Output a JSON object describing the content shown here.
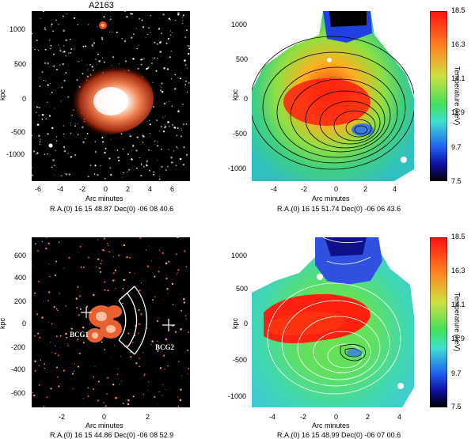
{
  "figure": {
    "panels": [
      {
        "id": "tl",
        "title": "A2163",
        "ylabel": "kpc",
        "xlabel": "Arc minutes",
        "coords": "R.A.(0) 16 15 48.87   Dec(0) -06 08 40.6",
        "xticks": [
          "-6",
          "-4",
          "-2",
          "0",
          "2",
          "4",
          "6"
        ],
        "yticks": [
          "1000",
          "500",
          "0",
          "-500",
          "-1000"
        ]
      },
      {
        "id": "tr",
        "title": "",
        "ylabel": "kpc",
        "xlabel": "Arc minutes",
        "coords": "R.A.(0) 16 15 51.74   Dec(0) -06 06 43.6",
        "xticks": [
          "-4",
          "-2",
          "0",
          "2",
          "4"
        ],
        "yticks": [
          "1000",
          "500",
          "0",
          "-500",
          "-1000"
        ]
      },
      {
        "id": "bl",
        "title": "",
        "ylabel": "kpc",
        "xlabel": "Arc minutes",
        "coords": "R.A.(0) 16 15 44.86   Dec(0) -06 08 52.9",
        "xticks": [
          "-2",
          "0",
          "2"
        ],
        "yticks": [
          "600",
          "400",
          "200",
          "0",
          "-200",
          "-400",
          "-600"
        ],
        "labels": [
          "BCG1",
          "BCG2"
        ]
      },
      {
        "id": "br",
        "title": "",
        "ylabel": "kpc",
        "xlabel": "Arc minutes",
        "coords": "R.A.(0) 16 15 48.99   Dec(0) -06 07 00.6",
        "xticks": [
          "-4",
          "-2",
          "0",
          "2",
          "4"
        ],
        "yticks": [
          "1000",
          "500",
          "0",
          "-500",
          "-1000"
        ]
      }
    ],
    "colorbar": {
      "label": "Temperature (keV)",
      "ticks": [
        "18.5",
        "16.3",
        "14.1",
        "11.9",
        "9.7",
        "7.5"
      ]
    }
  }
}
